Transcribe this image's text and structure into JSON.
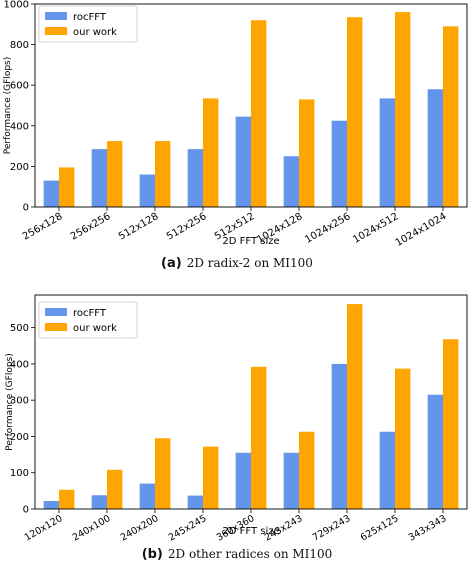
{
  "chart_data": [
    {
      "type": "bar",
      "xlabel": "2D FFT size",
      "ylabel": "Performance (GFlops)",
      "ylim": [
        0,
        1000
      ],
      "yticks": [
        "0",
        "200",
        "400",
        "600",
        "800",
        "1000"
      ],
      "categories": [
        "256x128",
        "256x256",
        "512x128",
        "512x256",
        "512x512",
        "1024x128",
        "1024x256",
        "1024x512",
        "1024x1024"
      ],
      "series": [
        {
          "name": "rocFFT",
          "color": "#6495ED",
          "values": [
            130,
            285,
            160,
            285,
            445,
            250,
            425,
            535,
            580
          ]
        },
        {
          "name": "our work",
          "color": "#FFA500",
          "values": [
            195,
            325,
            325,
            535,
            920,
            530,
            935,
            960,
            890
          ]
        }
      ],
      "legend": "top-left",
      "grid": false,
      "caption_label": "(a)",
      "caption": "2D radix-2 on MI100"
    },
    {
      "type": "bar",
      "xlabel": "2D FFT size",
      "ylabel": "Performance (GFlops)",
      "ylim": [
        0,
        590
      ],
      "yticks": [
        "0",
        "100",
        "200",
        "300",
        "400",
        "500"
      ],
      "categories": [
        "120x120",
        "240x100",
        "240x200",
        "245x245",
        "360x360",
        "243x243",
        "729x243",
        "625x125",
        "343x343"
      ],
      "series": [
        {
          "name": "rocFFT",
          "color": "#6495ED",
          "values": [
            22,
            38,
            70,
            37,
            155,
            155,
            400,
            213,
            315
          ]
        },
        {
          "name": "our work",
          "color": "#FFA500",
          "values": [
            53,
            108,
            195,
            172,
            392,
            213,
            565,
            387,
            468
          ]
        }
      ],
      "legend": "top-left",
      "grid": false,
      "caption_label": "(b)",
      "caption": "2D other radices on MI100"
    }
  ]
}
